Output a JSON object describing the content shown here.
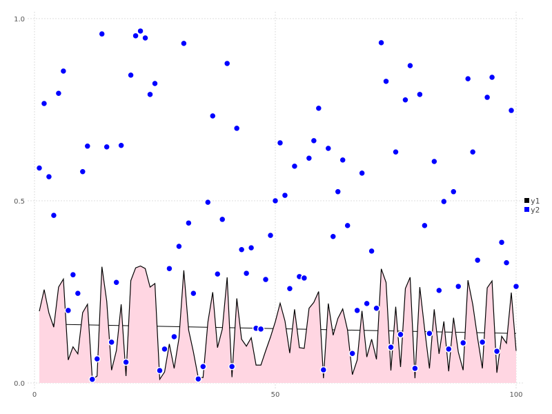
{
  "chart_data": {
    "type": "area+line+scatter",
    "xlim": [
      0,
      100
    ],
    "ylim": [
      0,
      1
    ],
    "x_ticks": [
      "0",
      "50",
      "100"
    ],
    "y_ticks": [
      "0.0",
      "0.5",
      "1.0"
    ],
    "grid": true,
    "legend_position": "right",
    "x": [
      1,
      2,
      3,
      4,
      5,
      6,
      7,
      8,
      9,
      10,
      11,
      12,
      13,
      14,
      15,
      16,
      17,
      18,
      19,
      20,
      21,
      22,
      23,
      24,
      25,
      26,
      27,
      28,
      29,
      30,
      31,
      32,
      33,
      34,
      35,
      36,
      37,
      38,
      39,
      40,
      41,
      42,
      43,
      44,
      45,
      46,
      47,
      48,
      49,
      50,
      51,
      52,
      53,
      54,
      55,
      56,
      57,
      58,
      59,
      60,
      61,
      62,
      63,
      64,
      65,
      66,
      67,
      68,
      69,
      70,
      71,
      72,
      73,
      74,
      75,
      76,
      77,
      78,
      79,
      80,
      81,
      82,
      83,
      84,
      85,
      86,
      87,
      88,
      89,
      90,
      91,
      92,
      93,
      94,
      95,
      96,
      97,
      98,
      99,
      100
    ],
    "series": [
      {
        "name": "y1",
        "kind": "area",
        "color": "#000000",
        "fill": "#ffd6e2",
        "values": [
          0.197,
          0.256,
          0.192,
          0.153,
          0.263,
          0.285,
          0.063,
          0.099,
          0.08,
          0.193,
          0.216,
          0.01,
          0.019,
          0.319,
          0.224,
          0.035,
          0.089,
          0.216,
          0.019,
          0.281,
          0.316,
          0.321,
          0.314,
          0.263,
          0.273,
          0.01,
          0.03,
          0.107,
          0.04,
          0.123,
          0.309,
          0.145,
          0.085,
          0.015,
          0.015,
          0.167,
          0.249,
          0.097,
          0.148,
          0.29,
          0.016,
          0.232,
          0.12,
          0.101,
          0.124,
          0.049,
          0.049,
          0.088,
          0.126,
          0.168,
          0.219,
          0.17,
          0.082,
          0.202,
          0.097,
          0.095,
          0.205,
          0.221,
          0.251,
          0.013,
          0.218,
          0.131,
          0.177,
          0.203,
          0.145,
          0.023,
          0.063,
          0.198,
          0.071,
          0.12,
          0.065,
          0.313,
          0.276,
          0.034,
          0.209,
          0.044,
          0.259,
          0.29,
          0.013,
          0.263,
          0.148,
          0.04,
          0.202,
          0.08,
          0.169,
          0.032,
          0.179,
          0.085,
          0.035,
          0.282,
          0.215,
          0.123,
          0.04,
          0.261,
          0.28,
          0.028,
          0.128,
          0.109,
          0.248,
          0.088
        ]
      },
      {
        "name": "y2",
        "kind": "scatter",
        "color": "#0000ff",
        "values": [
          0.59,
          0.767,
          0.566,
          0.46,
          0.795,
          0.856,
          0.199,
          0.297,
          0.246,
          0.58,
          0.65,
          0.01,
          0.066,
          0.958,
          0.648,
          0.112,
          0.276,
          0.652,
          0.057,
          0.845,
          0.953,
          0.966,
          0.947,
          0.792,
          0.822,
          0.034,
          0.093,
          0.314,
          0.127,
          0.375,
          0.932,
          0.439,
          0.246,
          0.011,
          0.045,
          0.496,
          0.733,
          0.299,
          0.449,
          0.877,
          0.045,
          0.699,
          0.366,
          0.301,
          0.371,
          0.15,
          0.148,
          0.284,
          0.405,
          0.5,
          0.659,
          0.515,
          0.259,
          0.595,
          0.292,
          0.288,
          0.617,
          0.665,
          0.754,
          0.036,
          0.644,
          0.402,
          0.525,
          0.612,
          0.432,
          0.081,
          0.199,
          0.576,
          0.218,
          0.362,
          0.205,
          0.934,
          0.828,
          0.098,
          0.634,
          0.133,
          0.777,
          0.871,
          0.04,
          0.792,
          0.432,
          0.136,
          0.608,
          0.254,
          0.498,
          0.093,
          0.525,
          0.265,
          0.11,
          0.835,
          0.634,
          0.337,
          0.112,
          0.784,
          0.839,
          0.087,
          0.386,
          0.33,
          0.748,
          0.265
        ]
      }
    ],
    "trend": {
      "of": "y1",
      "color": "#000000",
      "y_at_start": 0.162,
      "y_at_end": 0.136
    }
  }
}
